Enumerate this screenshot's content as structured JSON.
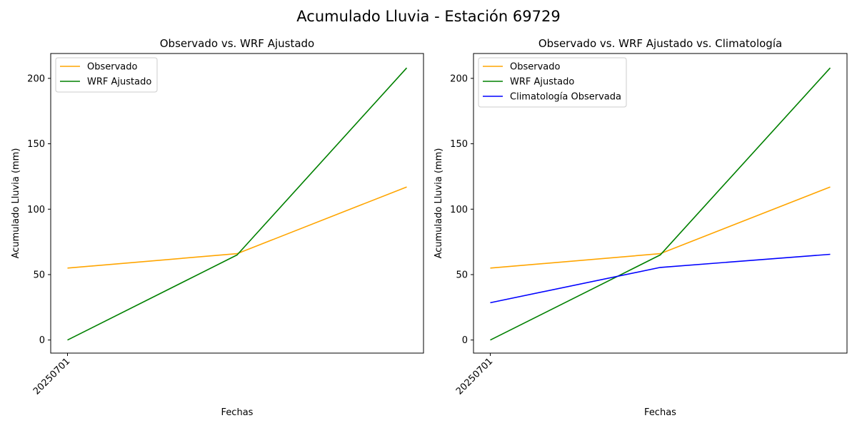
{
  "figure": {
    "title": "Acumulado Lluvia - Estación 69729"
  },
  "chart_data": [
    {
      "type": "line",
      "title": "Observado vs. WRF Ajustado",
      "xlabel": "Fechas",
      "ylabel": "Acumulado Lluvia (mm)",
      "x_tick_labels": [
        "20250701"
      ],
      "y_ticks": [
        0,
        50,
        100,
        150,
        200
      ],
      "ylim": [
        -10,
        219
      ],
      "legend_position": "upper-left",
      "grid": false,
      "series": [
        {
          "name": "Observado",
          "color": "#ffa500",
          "values": [
            55,
            66,
            117
          ]
        },
        {
          "name": "WRF Ajustado",
          "color": "#008000",
          "values": [
            0,
            65,
            208
          ]
        }
      ]
    },
    {
      "type": "line",
      "title": "Observado vs. WRF Ajustado vs. Climatología",
      "xlabel": "Fechas",
      "ylabel": "Acumulado Lluvia (mm)",
      "x_tick_labels": [
        "20250701"
      ],
      "y_ticks": [
        0,
        50,
        100,
        150,
        200
      ],
      "ylim": [
        -10,
        219
      ],
      "legend_position": "upper-left",
      "grid": false,
      "series": [
        {
          "name": "Observado",
          "color": "#ffa500",
          "values": [
            55,
            66,
            117
          ]
        },
        {
          "name": "WRF Ajustado",
          "color": "#008000",
          "values": [
            0,
            65,
            208
          ]
        },
        {
          "name": "Climatología Observada",
          "color": "#0000ff",
          "values": [
            28.5,
            55.5,
            65.5
          ]
        }
      ]
    }
  ]
}
